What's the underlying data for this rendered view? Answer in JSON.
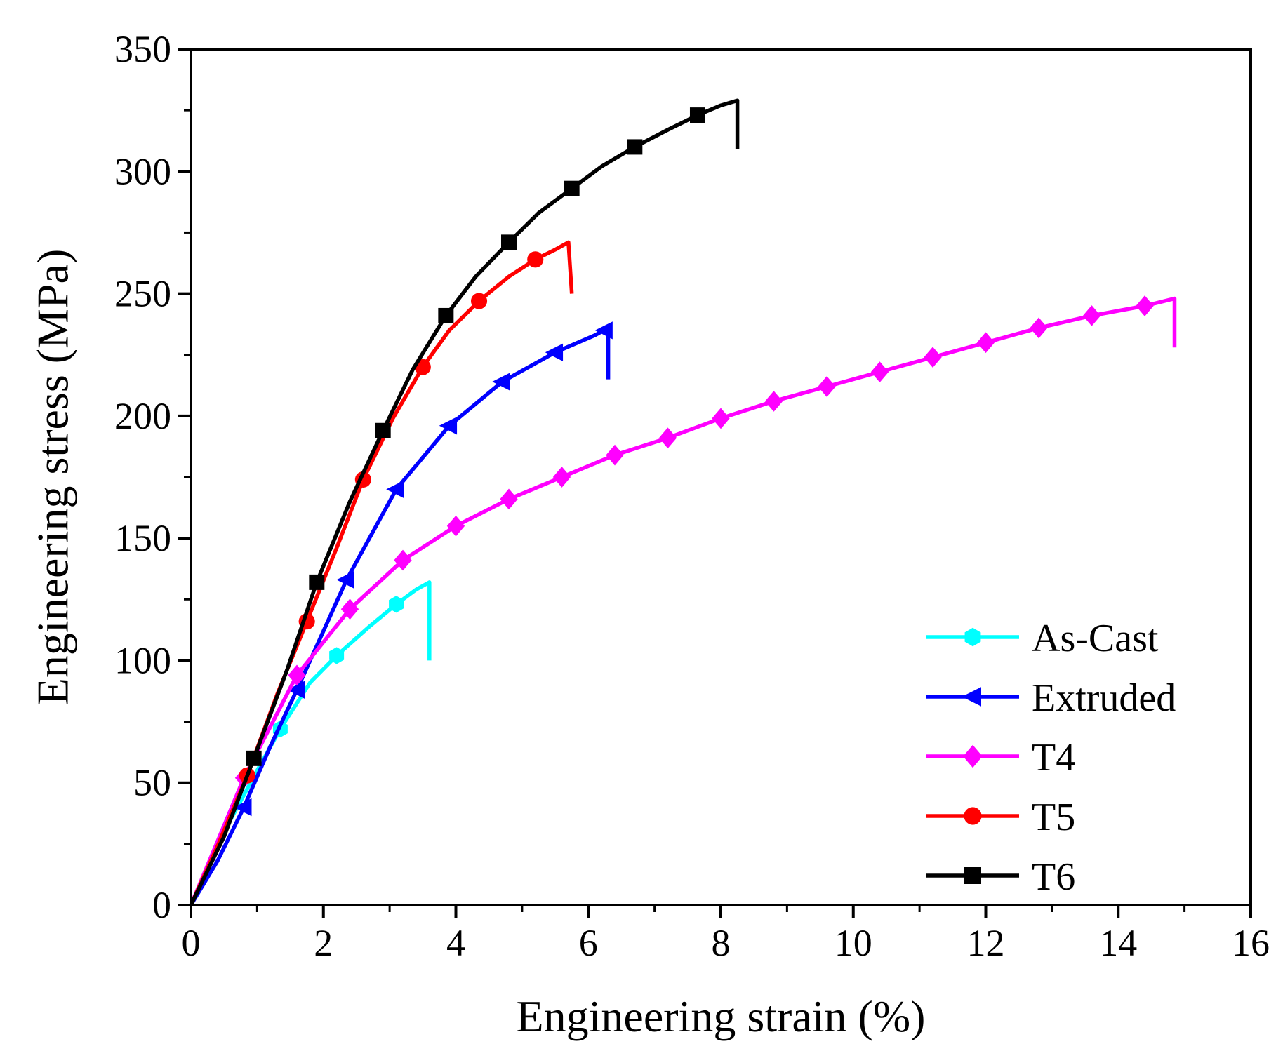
{
  "chart_data": {
    "type": "line",
    "title": "",
    "xlabel": "Engineering strain (%)",
    "ylabel": "Engineering stress (MPa)",
    "xlim": [
      0,
      16
    ],
    "ylim": [
      0,
      350
    ],
    "xticks": [
      0,
      2,
      4,
      6,
      8,
      10,
      12,
      14,
      16
    ],
    "yticks": [
      0,
      50,
      100,
      150,
      200,
      250,
      300,
      350
    ],
    "grid": false,
    "legend_position": "bottom-right",
    "series": [
      {
        "name": "As-Cast",
        "color": "#00FFFF",
        "marker": "hexagon",
        "points": [
          [
            0,
            0
          ],
          [
            0.5,
            30
          ],
          [
            1.0,
            55
          ],
          [
            1.35,
            72
          ],
          [
            1.8,
            91
          ],
          [
            2.2,
            102
          ],
          [
            2.7,
            114
          ],
          [
            3.1,
            123
          ],
          [
            3.4,
            129
          ],
          [
            3.6,
            132
          ],
          [
            3.6,
            100
          ]
        ],
        "markers": [
          [
            1.35,
            72
          ],
          [
            2.2,
            102
          ],
          [
            3.1,
            123
          ]
        ]
      },
      {
        "name": "Extruded",
        "color": "#0000FF",
        "marker": "triangle-left",
        "points": [
          [
            0,
            0
          ],
          [
            0.4,
            18
          ],
          [
            0.8,
            40
          ],
          [
            1.2,
            65
          ],
          [
            1.6,
            88
          ],
          [
            2.35,
            133
          ],
          [
            3.1,
            170
          ],
          [
            3.9,
            196
          ],
          [
            4.7,
            214
          ],
          [
            5.5,
            226
          ],
          [
            6.1,
            233
          ],
          [
            6.3,
            236
          ],
          [
            6.3,
            215
          ]
        ],
        "markers": [
          [
            0.8,
            40
          ],
          [
            1.6,
            88
          ],
          [
            2.35,
            133
          ],
          [
            3.1,
            170
          ],
          [
            3.9,
            196
          ],
          [
            4.7,
            214
          ],
          [
            5.5,
            226
          ],
          [
            6.25,
            235
          ]
        ]
      },
      {
        "name": "T4",
        "color": "#FF00FF",
        "marker": "diamond",
        "points": [
          [
            0,
            0
          ],
          [
            0.4,
            26
          ],
          [
            0.8,
            52
          ],
          [
            1.6,
            94
          ],
          [
            2.4,
            121
          ],
          [
            3.2,
            141
          ],
          [
            4.0,
            155
          ],
          [
            4.8,
            166
          ],
          [
            5.6,
            175
          ],
          [
            6.4,
            184
          ],
          [
            7.2,
            191
          ],
          [
            8.0,
            199
          ],
          [
            8.8,
            206
          ],
          [
            9.6,
            212
          ],
          [
            10.4,
            218
          ],
          [
            11.2,
            224
          ],
          [
            12.0,
            230
          ],
          [
            12.8,
            236
          ],
          [
            13.6,
            241
          ],
          [
            14.4,
            245
          ],
          [
            14.85,
            248
          ],
          [
            14.85,
            228
          ]
        ],
        "markers": [
          [
            0.8,
            52
          ],
          [
            1.6,
            94
          ],
          [
            2.4,
            121
          ],
          [
            3.2,
            141
          ],
          [
            4.0,
            155
          ],
          [
            4.8,
            166
          ],
          [
            5.6,
            175
          ],
          [
            6.4,
            184
          ],
          [
            7.2,
            191
          ],
          [
            8.0,
            199
          ],
          [
            8.8,
            206
          ],
          [
            9.6,
            212
          ],
          [
            10.4,
            218
          ],
          [
            11.2,
            224
          ],
          [
            12.0,
            230
          ],
          [
            12.8,
            236
          ],
          [
            13.6,
            241
          ],
          [
            14.4,
            245
          ]
        ]
      },
      {
        "name": "T5",
        "color": "#FF0000",
        "marker": "circle",
        "points": [
          [
            0,
            0
          ],
          [
            0.4,
            24
          ],
          [
            0.85,
            53
          ],
          [
            1.3,
            86
          ],
          [
            1.75,
            116
          ],
          [
            2.2,
            146
          ],
          [
            2.6,
            174
          ],
          [
            3.05,
            199
          ],
          [
            3.5,
            220
          ],
          [
            3.9,
            235
          ],
          [
            4.35,
            247
          ],
          [
            4.8,
            257
          ],
          [
            5.2,
            264
          ],
          [
            5.5,
            268
          ],
          [
            5.7,
            271
          ],
          [
            5.75,
            250
          ]
        ],
        "markers": [
          [
            0.85,
            53
          ],
          [
            1.75,
            116
          ],
          [
            2.6,
            174
          ],
          [
            3.5,
            220
          ],
          [
            4.35,
            247
          ],
          [
            5.2,
            264
          ]
        ]
      },
      {
        "name": "T6",
        "color": "#000000",
        "marker": "square",
        "points": [
          [
            0,
            0
          ],
          [
            0.5,
            28
          ],
          [
            0.95,
            60
          ],
          [
            1.45,
            96
          ],
          [
            1.9,
            132
          ],
          [
            2.4,
            165
          ],
          [
            2.9,
            194
          ],
          [
            3.35,
            219
          ],
          [
            3.85,
            241
          ],
          [
            4.3,
            257
          ],
          [
            4.8,
            271
          ],
          [
            5.25,
            283
          ],
          [
            5.75,
            293
          ],
          [
            6.2,
            302
          ],
          [
            6.7,
            310
          ],
          [
            7.2,
            317
          ],
          [
            7.65,
            323
          ],
          [
            8.0,
            327
          ],
          [
            8.25,
            329
          ],
          [
            8.25,
            309
          ]
        ],
        "markers": [
          [
            0.95,
            60
          ],
          [
            1.9,
            132
          ],
          [
            2.9,
            194
          ],
          [
            3.85,
            241
          ],
          [
            4.8,
            271
          ],
          [
            5.75,
            293
          ],
          [
            6.7,
            310
          ],
          [
            7.65,
            323
          ]
        ]
      }
    ]
  }
}
